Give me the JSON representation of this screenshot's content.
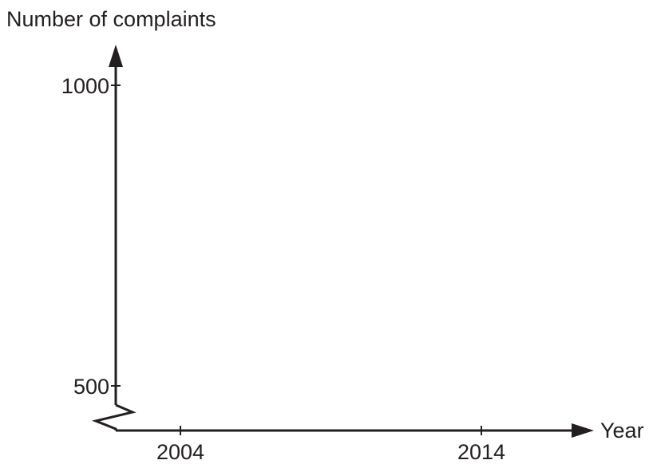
{
  "chart_data": {
    "type": "line",
    "title": "",
    "xlabel": "Year",
    "ylabel": "Number of complaints",
    "x_ticks": [
      {
        "label": "2004",
        "value": 2004
      },
      {
        "label": "2014",
        "value": 2014
      }
    ],
    "y_ticks": [
      {
        "label": "500",
        "value": 500
      },
      {
        "label": "1000",
        "value": 1000
      }
    ],
    "y_axis_break": true,
    "grid": false,
    "series": []
  }
}
